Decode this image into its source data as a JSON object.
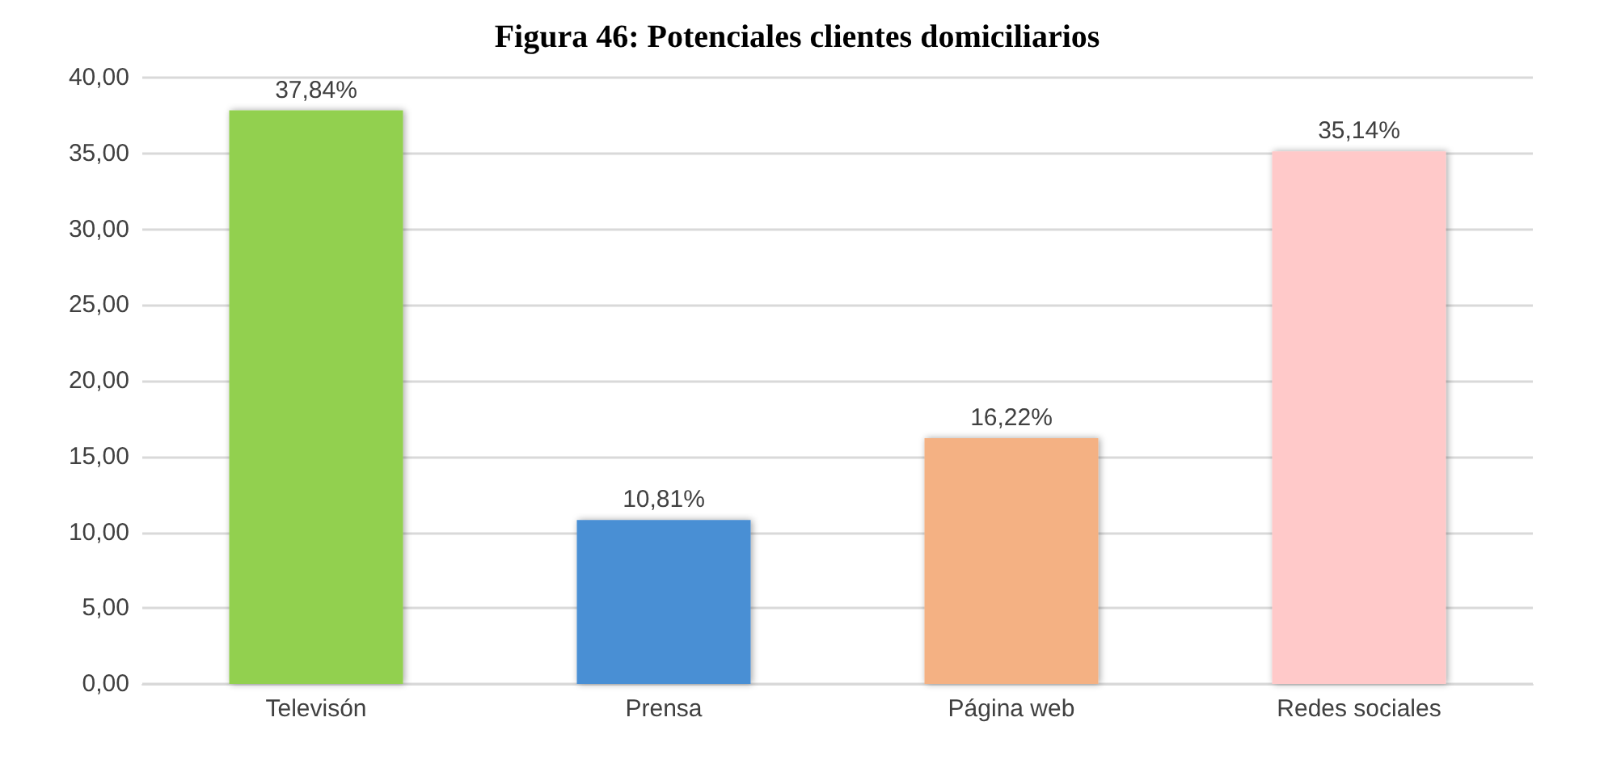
{
  "chart_data": {
    "type": "bar",
    "title": "Figura 46: Potenciales clientes domiciliarios",
    "categories": [
      "Televisón",
      "Prensa",
      "Página web",
      "Redes sociales"
    ],
    "values": [
      37.84,
      10.81,
      16.22,
      35.14
    ],
    "colors": [
      "#92d050",
      "#4a8fd4",
      "#f4b183",
      "#ffc9c9"
    ],
    "value_labels": [
      "37,84%",
      "10,81%",
      "16,22%",
      "35,14%"
    ],
    "ylim": [
      0,
      40
    ],
    "yticks": [
      {
        "value": 0,
        "label": "0,00"
      },
      {
        "value": 5,
        "label": "5,00"
      },
      {
        "value": 10,
        "label": "10,00"
      },
      {
        "value": 15,
        "label": "15,00"
      },
      {
        "value": 20,
        "label": "20,00"
      },
      {
        "value": 25,
        "label": "25,00"
      },
      {
        "value": 30,
        "label": "30,00"
      },
      {
        "value": 35,
        "label": "35,00"
      },
      {
        "value": 40,
        "label": "40,00"
      }
    ],
    "grid": "y"
  }
}
